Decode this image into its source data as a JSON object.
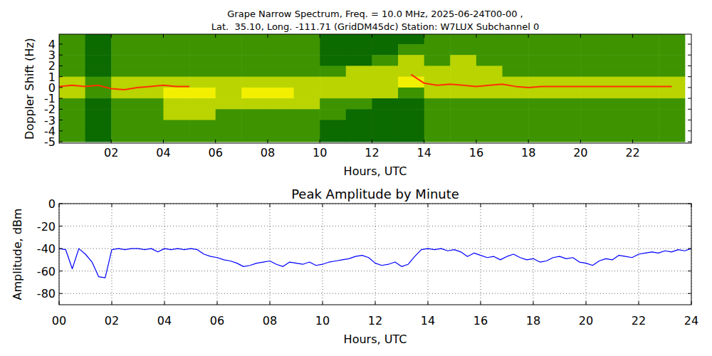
{
  "chart_data": [
    {
      "type": "heatmap",
      "title": "Grape Narrow Spectrum, Freq. = 10.0 MHz, 2025-06-24T00-00 ,",
      "subtitle": "Lat.  35.10, Long. -111.71 (GridDM45dc) Station: W7LUX Subchannel 0",
      "x_label": "Hours, UTC",
      "y_label": "Doppler Shift (Hz)",
      "xlim": [
        0,
        24.25
      ],
      "ylim": [
        -5.13,
        4.92
      ],
      "xticks": [
        {
          "value": 2,
          "label": "02"
        },
        {
          "value": 4,
          "label": "04"
        },
        {
          "value": 6,
          "label": "06"
        },
        {
          "value": 8,
          "label": "08"
        },
        {
          "value": 10,
          "label": "10"
        },
        {
          "value": 12,
          "label": "12"
        },
        {
          "value": 14,
          "label": "14"
        },
        {
          "value": 16,
          "label": "16"
        },
        {
          "value": 18,
          "label": "18"
        },
        {
          "value": 20,
          "label": "20"
        },
        {
          "value": 22,
          "label": "22"
        }
      ],
      "yticks": [
        -5,
        -4,
        -3,
        -2,
        -1,
        0,
        1,
        2,
        3,
        4
      ],
      "grid": false,
      "x_edges": [
        0,
        1,
        2,
        3,
        4,
        5,
        6,
        7,
        8,
        9,
        10,
        11,
        12,
        13,
        14,
        15,
        16,
        17,
        18,
        19,
        20,
        21,
        22,
        23,
        24
      ],
      "y_edges": [
        5,
        4,
        3,
        2,
        1,
        0,
        -1,
        -2,
        -3,
        -4,
        -5
      ],
      "zlim": [
        0,
        3
      ],
      "colors": [
        "#0b6a00",
        "#3d9400",
        "#b9d400",
        "#f2f000"
      ],
      "cells": [
        [
          1,
          0,
          1,
          1,
          1,
          1,
          1,
          1,
          1,
          1,
          0,
          0,
          0,
          0,
          1,
          1,
          1,
          1,
          1,
          1,
          1,
          1,
          1,
          1
        ],
        [
          1,
          0,
          1,
          1,
          1,
          1,
          1,
          1,
          1,
          1,
          0,
          0,
          0,
          1,
          1,
          1,
          1,
          1,
          1,
          1,
          1,
          1,
          1,
          1
        ],
        [
          1,
          0,
          1,
          1,
          1,
          1,
          1,
          1,
          1,
          1,
          0,
          0,
          1,
          2,
          1,
          2,
          1,
          1,
          1,
          1,
          1,
          1,
          1,
          1
        ],
        [
          1,
          0,
          1,
          1,
          1,
          1,
          1,
          1,
          1,
          1,
          1,
          2,
          2,
          2,
          2,
          2,
          2,
          1,
          1,
          1,
          1,
          1,
          1,
          1
        ],
        [
          2,
          1,
          2,
          2,
          2,
          2,
          2,
          2,
          2,
          2,
          2,
          2,
          2,
          3,
          2,
          2,
          2,
          2,
          2,
          2,
          2,
          2,
          2,
          2
        ],
        [
          2,
          1,
          2,
          2,
          3,
          3,
          2,
          3,
          3,
          2,
          2,
          2,
          2,
          1,
          2,
          2,
          2,
          2,
          2,
          2,
          2,
          2,
          2,
          2
        ],
        [
          1,
          0,
          1,
          1,
          2,
          2,
          2,
          2,
          2,
          2,
          1,
          1,
          0,
          0,
          1,
          1,
          1,
          1,
          1,
          1,
          1,
          1,
          1,
          1
        ],
        [
          1,
          0,
          1,
          1,
          2,
          2,
          1,
          1,
          1,
          1,
          1,
          0,
          0,
          0,
          1,
          1,
          1,
          1,
          1,
          1,
          1,
          1,
          1,
          1
        ],
        [
          1,
          0,
          1,
          1,
          1,
          1,
          1,
          1,
          1,
          1,
          0,
          0,
          0,
          0,
          1,
          1,
          1,
          1,
          1,
          1,
          1,
          1,
          1,
          1
        ],
        [
          1,
          0,
          1,
          1,
          1,
          1,
          1,
          1,
          1,
          1,
          0,
          0,
          0,
          0,
          1,
          1,
          1,
          1,
          1,
          1,
          1,
          1,
          1,
          1
        ]
      ],
      "x": [
        0,
        0.5,
        1,
        1.5,
        2,
        2.5,
        3,
        3.5,
        4,
        4.5,
        5,
        5.5,
        6,
        6.5,
        7,
        7.5,
        8,
        8.5,
        9,
        9.5,
        10,
        10.5,
        11,
        11.5,
        12,
        12.5,
        13,
        13.5,
        14,
        14.5,
        15,
        15.5,
        16,
        16.5,
        17,
        17.5,
        18,
        18.5,
        19,
        19.5,
        20,
        20.5,
        21,
        21.5,
        22,
        22.5,
        23,
        23.5
      ],
      "series": [
        {
          "color": "#ff3000",
          "values": [
            0.1,
            0.2,
            0.1,
            0.2,
            -0.1,
            -0.2,
            0,
            0.1,
            0.2,
            0.1,
            0.1,
            null,
            null,
            null,
            null,
            null,
            null,
            null,
            null,
            null,
            null,
            null,
            null,
            null,
            null,
            null,
            null,
            1.2,
            0.4,
            0.2,
            0.3,
            0.2,
            0.1,
            0.2,
            0.3,
            0.1,
            0,
            0.1,
            0.1,
            0.1,
            0.1,
            0.1,
            0.1,
            0.1,
            0.1,
            0.1,
            0.1,
            0.1
          ]
        }
      ]
    },
    {
      "type": "line",
      "title": "Peak Amplitude by Minute",
      "x_label": "Hours, UTC",
      "y_label": "Amplitude, dBm",
      "xlim": [
        0,
        24
      ],
      "ylim": [
        -90,
        0
      ],
      "xticks": [
        {
          "value": 0,
          "label": "00"
        },
        {
          "value": 2,
          "label": "02"
        },
        {
          "value": 4,
          "label": "04"
        },
        {
          "value": 6,
          "label": "06"
        },
        {
          "value": 8,
          "label": "08"
        },
        {
          "value": 10,
          "label": "10"
        },
        {
          "value": 12,
          "label": "12"
        },
        {
          "value": 14,
          "label": "14"
        },
        {
          "value": 16,
          "label": "16"
        },
        {
          "value": 18,
          "label": "18"
        },
        {
          "value": 20,
          "label": "20"
        },
        {
          "value": 22,
          "label": "22"
        },
        {
          "value": 24,
          "label": "24"
        }
      ],
      "yticks": [
        -80,
        -60,
        -40,
        -20,
        0
      ],
      "grid": true,
      "x": [
        0,
        0.25,
        0.5,
        0.75,
        1,
        1.25,
        1.5,
        1.75,
        2,
        2.25,
        2.5,
        2.75,
        3,
        3.25,
        3.5,
        3.75,
        4,
        4.25,
        4.5,
        4.75,
        5,
        5.25,
        5.5,
        5.75,
        6,
        6.25,
        6.5,
        6.75,
        7,
        7.25,
        7.5,
        7.75,
        8,
        8.25,
        8.5,
        8.75,
        9,
        9.25,
        9.5,
        9.75,
        10,
        10.25,
        10.5,
        10.75,
        11,
        11.25,
        11.5,
        11.75,
        12,
        12.25,
        12.5,
        12.75,
        13,
        13.25,
        13.5,
        13.75,
        14,
        14.25,
        14.5,
        14.75,
        15,
        15.25,
        15.5,
        15.75,
        16,
        16.25,
        16.5,
        16.75,
        17,
        17.25,
        17.5,
        17.75,
        18,
        18.25,
        18.5,
        18.75,
        19,
        19.25,
        19.5,
        19.75,
        20,
        20.25,
        20.5,
        20.75,
        21,
        21.25,
        21.5,
        21.75,
        22,
        22.25,
        22.5,
        22.75,
        23,
        23.25,
        23.5,
        23.75,
        24
      ],
      "series": [
        {
          "color": "#0000ff",
          "values": [
            -40,
            -41,
            -58,
            -40,
            -45,
            -52,
            -65,
            -66,
            -41,
            -40,
            -41,
            -40,
            -40,
            -41,
            -40,
            -43,
            -40,
            -41,
            -40,
            -41,
            -40,
            -41,
            -45,
            -47,
            -48,
            -50,
            -51,
            -53,
            -56,
            -55,
            -53,
            -52,
            -51,
            -54,
            -56,
            -52,
            -53,
            -54,
            -52,
            -55,
            -54,
            -52,
            -51,
            -50,
            -49,
            -47,
            -46,
            -48,
            -53,
            -55,
            -54,
            -52,
            -56,
            -54,
            -47,
            -41,
            -40,
            -41,
            -40,
            -42,
            -41,
            -43,
            -47,
            -44,
            -46,
            -48,
            -47,
            -50,
            -47,
            -45,
            -48,
            -50,
            -49,
            -52,
            -51,
            -48,
            -47,
            -49,
            -48,
            -52,
            -53,
            -55,
            -51,
            -49,
            -50,
            -46,
            -47,
            -48,
            -45,
            -44,
            -43,
            -44,
            -42,
            -43,
            -41,
            -42,
            -40
          ]
        }
      ]
    }
  ]
}
